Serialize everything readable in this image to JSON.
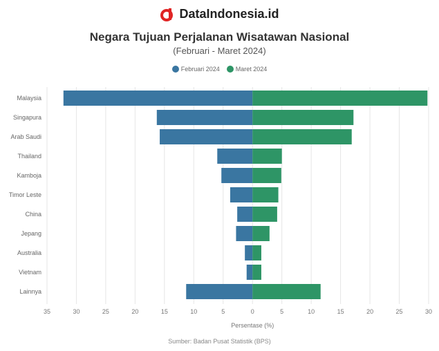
{
  "brand": {
    "name": "DataIndonesia.id",
    "icon": "dataindonesia-logo-icon",
    "accent": "#e02424"
  },
  "chart_data": {
    "type": "bar",
    "orientation": "horizontal-diverging",
    "title": "Negara Tujuan Perjalanan Wisatawan Nasional",
    "subtitle": "(Februari - Maret 2024)",
    "categories": [
      "Malaysia",
      "Singapura",
      "Arab Saudi",
      "Thailand",
      "Kamboja",
      "Timor Leste",
      "China",
      "Jepang",
      "Australia",
      "Vietnam",
      "Lainnya"
    ],
    "series": [
      {
        "name": "Februari 2024",
        "color": "#3a76a1",
        "values": [
          32.2,
          16.3,
          15.8,
          6.0,
          5.3,
          3.8,
          2.6,
          2.8,
          1.3,
          1.0,
          11.3
        ]
      },
      {
        "name": "Maret 2024",
        "color": "#2e9566",
        "values": [
          29.8,
          17.2,
          16.9,
          5.0,
          4.9,
          4.4,
          4.2,
          2.9,
          1.5,
          1.5,
          11.6
        ]
      }
    ],
    "xlim": [
      -35,
      30
    ],
    "xticks": [
      -35,
      -30,
      -25,
      -20,
      -15,
      -10,
      -5,
      0,
      5,
      10,
      15,
      20,
      25,
      30
    ],
    "xtick_labels": [
      "35",
      "30",
      "25",
      "20",
      "15",
      "10",
      "5",
      "0",
      "5",
      "10",
      "15",
      "20",
      "25",
      "30"
    ],
    "xlabel": "Persentase (%)",
    "ylabel": "",
    "legend": "top-center",
    "grid": true
  },
  "source": "Sumber: Badan Pusat Statistik (BPS)"
}
